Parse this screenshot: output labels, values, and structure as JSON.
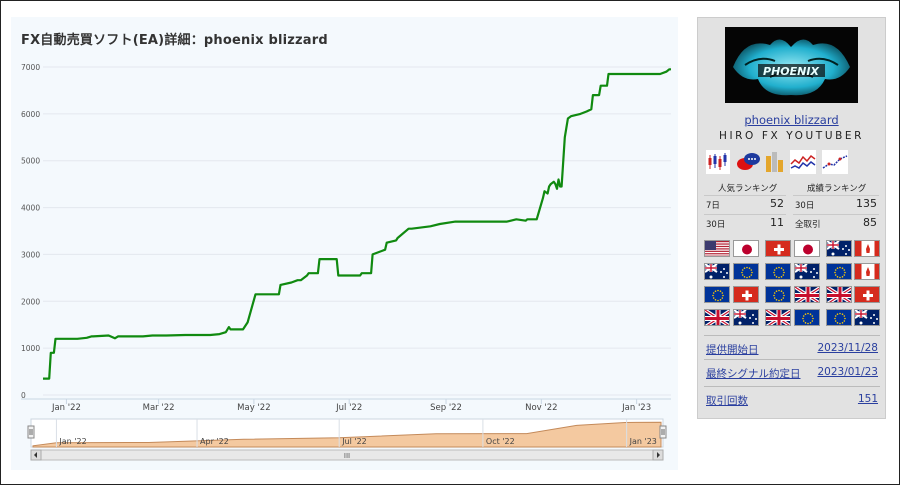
{
  "chart": {
    "title": "FX自動売買ソフト(EA)詳細：phoenix blizzard",
    "navigator_labels": [
      "Jan '22",
      "Apr '22",
      "Jul '22",
      "Oct '22",
      "Jan '23"
    ],
    "scrollbar_grip": "III"
  },
  "chart_data": {
    "type": "line",
    "title": "FX自動売買ソフト(EA)詳細：phoenix blizzard",
    "xlabel": "",
    "ylabel": "",
    "ylim": [
      0,
      7000
    ],
    "yticks": [
      0,
      1000,
      2000,
      3000,
      4000,
      5000,
      6000,
      7000
    ],
    "xticks": [
      {
        "date": "2022-01-01",
        "label": "Jan '22"
      },
      {
        "date": "2022-03-01",
        "label": "Mar '22"
      },
      {
        "date": "2022-05-01",
        "label": "May '22"
      },
      {
        "date": "2022-07-01",
        "label": "Jul '22"
      },
      {
        "date": "2022-09-01",
        "label": "Sep '22"
      },
      {
        "date": "2022-11-01",
        "label": "Nov '22"
      },
      {
        "date": "2023-01-01",
        "label": "Jan '23"
      }
    ],
    "xrange": [
      "2021-12-17",
      "2023-01-23"
    ],
    "grid": true,
    "legend": "none",
    "line_color": "#108a10",
    "series": [
      {
        "x": [
          "2021-12-17",
          "2021-12-21",
          "2021-12-22",
          "2021-12-24",
          "2021-12-25",
          "2021-12-28",
          "2022-01-08",
          "2022-01-14",
          "2022-01-17",
          "2022-01-18",
          "2022-01-28",
          "2022-02-01",
          "2022-02-03",
          "2022-02-14",
          "2022-02-19",
          "2022-02-25",
          "2022-03-06",
          "2022-03-18",
          "2022-03-25",
          "2022-04-03",
          "2022-04-09",
          "2022-04-13",
          "2022-04-15",
          "2022-04-16",
          "2022-04-24",
          "2022-04-27",
          "2022-05-02",
          "2022-05-09",
          "2022-05-17",
          "2022-05-18",
          "2022-05-25",
          "2022-05-29",
          "2022-05-31",
          "2022-06-04",
          "2022-06-05",
          "2022-06-11",
          "2022-06-12",
          "2022-06-17",
          "2022-06-18",
          "2022-06-23",
          "2022-06-24",
          "2022-06-25",
          "2022-07-08",
          "2022-07-09",
          "2022-07-15",
          "2022-07-16",
          "2022-07-24",
          "2022-07-25",
          "2022-07-31",
          "2022-08-01",
          "2022-08-08",
          "2022-08-10",
          "2022-08-22",
          "2022-08-28",
          "2022-09-07",
          "2022-09-13",
          "2022-09-21",
          "2022-10-01",
          "2022-10-10",
          "2022-10-16",
          "2022-10-22",
          "2022-10-23",
          "2022-10-28",
          "2022-10-29",
          "2022-11-02",
          "2022-11-03",
          "2022-11-05",
          "2022-11-06",
          "2022-11-07",
          "2022-11-09",
          "2022-11-10",
          "2022-11-11",
          "2022-11-12",
          "2022-11-13",
          "2022-11-14",
          "2022-11-16",
          "2022-11-18",
          "2022-11-20",
          "2022-11-26",
          "2022-11-30",
          "2022-12-03",
          "2022-12-04",
          "2022-12-08",
          "2022-12-09",
          "2022-12-13",
          "2022-12-14",
          "2022-12-26",
          "2023-01-16",
          "2023-01-20",
          "2023-01-22",
          "2023-01-23"
        ],
        "y": [
          350,
          350,
          900,
          900,
          1200,
          1200,
          1200,
          1220,
          1250,
          1250,
          1270,
          1210,
          1250,
          1250,
          1250,
          1270,
          1270,
          1280,
          1280,
          1280,
          1300,
          1340,
          1450,
          1400,
          1400,
          1550,
          2150,
          2150,
          2150,
          2350,
          2400,
          2450,
          2450,
          2550,
          2600,
          2600,
          2900,
          2900,
          2900,
          2900,
          2550,
          2550,
          2550,
          2600,
          2600,
          3000,
          3100,
          3250,
          3300,
          3350,
          3550,
          3550,
          3600,
          3650,
          3700,
          3700,
          3700,
          3700,
          3700,
          3750,
          3720,
          3750,
          3750,
          3750,
          4200,
          4350,
          4300,
          4450,
          4500,
          4550,
          4500,
          4400,
          4600,
          4450,
          4450,
          5500,
          5900,
          5950,
          6000,
          6050,
          6100,
          6400,
          6400,
          6600,
          6600,
          6850,
          6850,
          6850,
          6900,
          6950,
          6950
        ]
      }
    ],
    "navigator": {
      "x": [
        "2021-12-17",
        "2022-01-01",
        "2022-03-01",
        "2022-05-01",
        "2022-07-01",
        "2022-09-01",
        "2022-10-29",
        "2022-11-30",
        "2022-12-31",
        "2023-01-23"
      ],
      "y": [
        350,
        1200,
        1270,
        2150,
        2600,
        3700,
        3750,
        6050,
        6850,
        6950
      ]
    }
  },
  "sidebar": {
    "logo_text": "PHOENIX",
    "ea_name": "phoenix blizzard",
    "author": "HIRO FX YOUTUBER",
    "icons": [
      "candlestick-chart-icon",
      "chat-bubbles-icon",
      "bar-chart-icon",
      "line-chart-icon",
      "trend-chart-icon"
    ],
    "popularity_title": "人気ランキング",
    "performance_title": "成績ランキング",
    "popularity": [
      {
        "label": "7日",
        "value": "52"
      },
      {
        "label": "30日",
        "value": "11"
      }
    ],
    "performance": [
      {
        "label": "30日",
        "value": "135"
      },
      {
        "label": "全取引",
        "value": "85"
      }
    ],
    "pairs": [
      [
        "us",
        "jp"
      ],
      [
        "ch",
        "jp"
      ],
      [
        "au",
        "ca"
      ],
      [
        "au",
        "eu"
      ],
      [
        "eu",
        "au"
      ],
      [
        "eu",
        "ca"
      ],
      [
        "eu",
        "ch"
      ],
      [
        "eu",
        "gb"
      ],
      [
        "gb",
        "ch"
      ],
      [
        "gb",
        "au"
      ],
      [
        "gb",
        "eu"
      ],
      [
        "eu",
        "au"
      ]
    ],
    "info": [
      {
        "label": "提供開始日",
        "value": "2023/11/28"
      },
      {
        "label": "最終シグナル約定日",
        "value": "2023/01/23"
      },
      {
        "label": "取引回数",
        "value": "151"
      }
    ]
  }
}
